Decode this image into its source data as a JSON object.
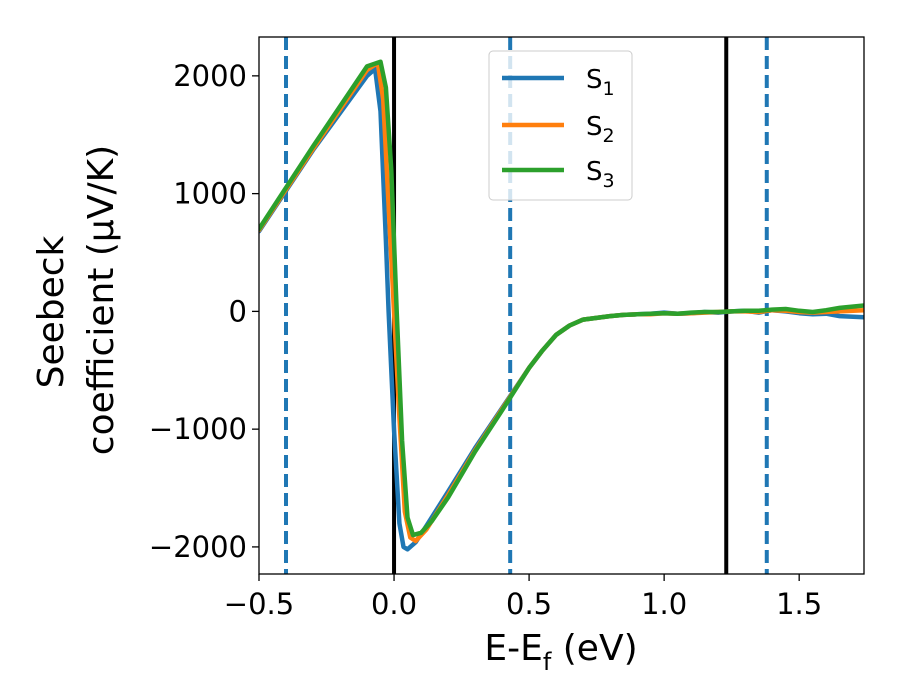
{
  "chart_data": {
    "type": "line",
    "xlabel": "E-E",
    "xlabel_sub": "f",
    "xlabel_unit": "(eV)",
    "ylabel_line1": "Seebeck",
    "ylabel_line2": "coefficient  (μV/K)",
    "xlim": [
      -0.5,
      1.74
    ],
    "ylim": [
      -2230,
      2330
    ],
    "xticks": [
      -0.5,
      0.0,
      0.5,
      1.0,
      1.5
    ],
    "xtick_labels": [
      "−0.5",
      "0.0",
      "0.5",
      "1.0",
      "1.5"
    ],
    "yticks": [
      -2000,
      -1000,
      0,
      1000,
      2000
    ],
    "ytick_labels": [
      "−2000",
      "−1000",
      "0",
      "1000",
      "2000"
    ],
    "grid": false,
    "legend_position": "upper-center",
    "vertical_lines": [
      {
        "x": -0.4,
        "style": "dashed",
        "color": "#1f77b4"
      },
      {
        "x": 0.0,
        "style": "solid",
        "color": "#000000"
      },
      {
        "x": 0.43,
        "style": "dashed",
        "color": "#1f77b4"
      },
      {
        "x": 1.23,
        "style": "solid",
        "color": "#000000"
      },
      {
        "x": 1.38,
        "style": "dashed",
        "color": "#1f77b4"
      }
    ],
    "series": [
      {
        "name": "S",
        "sub": "1",
        "color": "#1f77b4",
        "x": [
          -0.5,
          -0.3,
          -0.1,
          -0.07,
          -0.05,
          -0.03,
          -0.02,
          0.0,
          0.02,
          0.035,
          0.05,
          0.08,
          0.12,
          0.2,
          0.3,
          0.4,
          0.5,
          0.55,
          0.6,
          0.65,
          0.7,
          0.8,
          0.85,
          0.9,
          0.95,
          1.0,
          1.05,
          1.1,
          1.15,
          1.2,
          1.25,
          1.3,
          1.35,
          1.4,
          1.45,
          1.5,
          1.55,
          1.6,
          1.65,
          1.74
        ],
        "y": [
          680,
          1370,
          2000,
          2060,
          1700,
          600,
          0,
          -1000,
          -1800,
          -2000,
          -2020,
          -1960,
          -1820,
          -1530,
          -1160,
          -820,
          -480,
          -330,
          -200,
          -120,
          -70,
          -40,
          -30,
          -25,
          -20,
          -10,
          -20,
          -15,
          -5,
          -10,
          0,
          5,
          -10,
          10,
          0,
          -15,
          -25,
          -20,
          -40,
          -50
        ]
      },
      {
        "name": "S",
        "sub": "2",
        "color": "#ff7f0e",
        "x": [
          -0.5,
          -0.3,
          -0.1,
          -0.06,
          -0.04,
          -0.02,
          0.0,
          0.02,
          0.04,
          0.06,
          0.08,
          0.12,
          0.2,
          0.3,
          0.4,
          0.5,
          0.55,
          0.6,
          0.65,
          0.7,
          0.8,
          0.85,
          0.9,
          0.95,
          1.0,
          1.05,
          1.1,
          1.15,
          1.2,
          1.25,
          1.3,
          1.35,
          1.4,
          1.45,
          1.5,
          1.55,
          1.6,
          1.65,
          1.74
        ],
        "y": [
          690,
          1380,
          2050,
          2110,
          1800,
          900,
          0,
          -900,
          -1700,
          -1920,
          -1950,
          -1850,
          -1560,
          -1180,
          -830,
          -480,
          -330,
          -200,
          -120,
          -70,
          -40,
          -30,
          -25,
          -25,
          -15,
          -20,
          -15,
          -10,
          -5,
          0,
          0,
          -5,
          10,
          5,
          -5,
          -10,
          -5,
          0,
          10
        ]
      },
      {
        "name": "S",
        "sub": "3",
        "color": "#2ca02c",
        "x": [
          -0.5,
          -0.3,
          -0.1,
          -0.05,
          -0.03,
          -0.01,
          0.01,
          0.03,
          0.05,
          0.07,
          0.1,
          0.14,
          0.2,
          0.3,
          0.4,
          0.5,
          0.55,
          0.6,
          0.65,
          0.7,
          0.8,
          0.85,
          0.9,
          0.95,
          1.0,
          1.05,
          1.1,
          1.15,
          1.2,
          1.25,
          1.3,
          1.35,
          1.4,
          1.45,
          1.5,
          1.55,
          1.6,
          1.65,
          1.74
        ],
        "y": [
          700,
          1400,
          2080,
          2120,
          1900,
          1200,
          0,
          -1100,
          -1750,
          -1900,
          -1880,
          -1780,
          -1580,
          -1190,
          -840,
          -480,
          -330,
          -200,
          -120,
          -70,
          -40,
          -30,
          -25,
          -20,
          -15,
          -20,
          -10,
          -5,
          -5,
          0,
          5,
          5,
          15,
          20,
          5,
          -5,
          10,
          30,
          50
        ]
      }
    ]
  }
}
